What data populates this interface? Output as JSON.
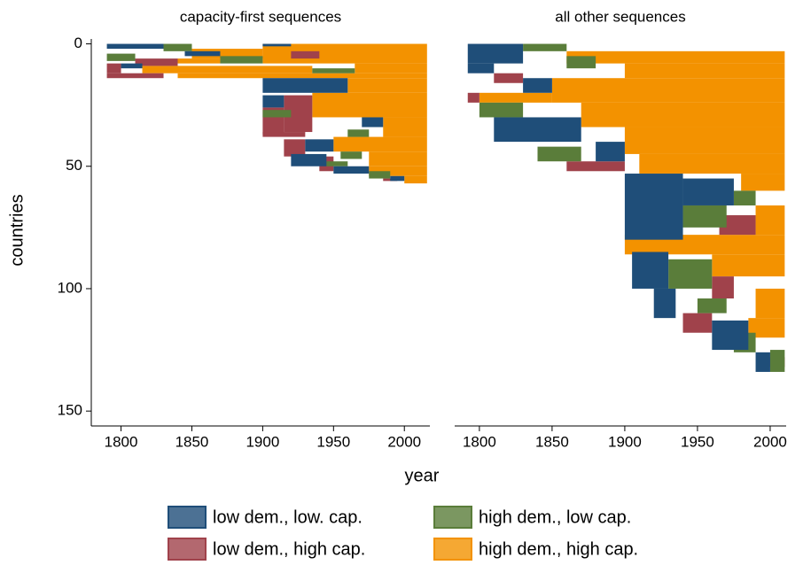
{
  "chart_data": [
    {
      "type": "sequence",
      "title": "capacity-first sequences",
      "xlim": [
        1779,
        2018
      ],
      "xticks": [
        1800,
        1850,
        1900,
        1950,
        2000
      ],
      "ylim": [
        -2,
        155
      ],
      "yticks": [
        0,
        50,
        100,
        150
      ],
      "segments": [
        [
          [
            0,
            2,
            1790,
            1830
          ],
          [
            0,
            1,
            1900,
            1920
          ],
          [
            3,
            5,
            1845,
            1870
          ],
          [
            14,
            20,
            1900,
            1960
          ],
          [
            21,
            26,
            1900,
            1915
          ],
          [
            39,
            44,
            1930,
            1950
          ],
          [
            45,
            50,
            1920,
            1945
          ],
          [
            50,
            53,
            1950,
            1975
          ],
          [
            54,
            56,
            1990,
            2000
          ],
          [
            8,
            10,
            1800,
            1815
          ],
          [
            30,
            34,
            1970,
            1985
          ]
        ],
        [
          [
            0,
            3,
            1830,
            1850
          ],
          [
            4,
            7,
            1790,
            1810
          ],
          [
            5,
            8,
            1870,
            1900
          ],
          [
            10,
            12,
            1935,
            1965
          ],
          [
            27,
            30,
            1900,
            1920
          ],
          [
            35,
            38,
            1960,
            1975
          ],
          [
            44,
            47,
            1955,
            1970
          ],
          [
            48,
            50,
            1945,
            1960
          ],
          [
            52,
            55,
            1975,
            1990
          ]
        ],
        [
          [
            8,
            12,
            1790,
            1800
          ],
          [
            6,
            9,
            1810,
            1840
          ],
          [
            12,
            14,
            1790,
            1830
          ],
          [
            21,
            36,
            1915,
            1935
          ],
          [
            26,
            37,
            1900,
            1915
          ],
          [
            36,
            38,
            1900,
            1930
          ],
          [
            39,
            46,
            1915,
            1930
          ],
          [
            46,
            52,
            1940,
            1950
          ],
          [
            55,
            56,
            1985,
            1995
          ],
          [
            3,
            6,
            1920,
            1940
          ]
        ],
        [
          [
            0,
            8,
            1900,
            2016
          ],
          [
            8,
            12,
            1965,
            2016
          ],
          [
            12,
            14,
            1840,
            2016
          ],
          [
            14,
            20,
            1960,
            2016
          ],
          [
            20,
            30,
            1935,
            2016
          ],
          [
            30,
            38,
            1985,
            2016
          ],
          [
            38,
            44,
            1950,
            2016
          ],
          [
            44,
            50,
            1975,
            2016
          ],
          [
            50,
            54,
            1975,
            2016
          ],
          [
            54,
            57,
            2000,
            2016
          ],
          [
            2,
            6,
            1850,
            1900
          ],
          [
            6,
            8,
            1840,
            1870
          ],
          [
            9,
            12,
            1815,
            1935
          ]
        ]
      ]
    },
    {
      "type": "sequence",
      "title": "all other sequences",
      "xlim": [
        1783,
        2011
      ],
      "xticks": [
        1800,
        1850,
        1900,
        1950,
        2000
      ],
      "ylim": [
        -2,
        155
      ],
      "segments": [
        [
          [
            0,
            8,
            1792,
            1830
          ],
          [
            8,
            12,
            1792,
            1810
          ],
          [
            30,
            40,
            1810,
            1870
          ],
          [
            53,
            80,
            1900,
            1940
          ],
          [
            55,
            66,
            1940,
            1975
          ],
          [
            85,
            100,
            1905,
            1930
          ],
          [
            100,
            112,
            1920,
            1935
          ],
          [
            113,
            125,
            1960,
            1985
          ],
          [
            126,
            134,
            1990,
            2000
          ],
          [
            40,
            48,
            1880,
            1900
          ],
          [
            14,
            20,
            1830,
            1850
          ]
        ],
        [
          [
            0,
            3,
            1830,
            1860
          ],
          [
            5,
            10,
            1860,
            1880
          ],
          [
            24,
            30,
            1800,
            1830
          ],
          [
            42,
            48,
            1840,
            1870
          ],
          [
            66,
            75,
            1940,
            1970
          ],
          [
            88,
            100,
            1930,
            1960
          ],
          [
            104,
            110,
            1950,
            1970
          ],
          [
            118,
            126,
            1975,
            1990
          ],
          [
            60,
            66,
            1975,
            1990
          ],
          [
            125,
            134,
            2000,
            2010
          ]
        ],
        [
          [
            12,
            16,
            1810,
            1830
          ],
          [
            20,
            24,
            1792,
            1800
          ],
          [
            48,
            52,
            1860,
            1900
          ],
          [
            70,
            78,
            1965,
            1990
          ],
          [
            95,
            104,
            1960,
            1975
          ],
          [
            110,
            118,
            1940,
            1960
          ],
          [
            128,
            132,
            1995,
            2010
          ]
        ],
        [
          [
            3,
            8,
            1860,
            2010
          ],
          [
            8,
            14,
            1900,
            2010
          ],
          [
            14,
            24,
            1850,
            2010
          ],
          [
            24,
            34,
            1870,
            2010
          ],
          [
            34,
            45,
            1900,
            2010
          ],
          [
            45,
            53,
            1910,
            2010
          ],
          [
            53,
            60,
            1980,
            2010
          ],
          [
            66,
            78,
            1990,
            2010
          ],
          [
            78,
            86,
            1900,
            2010
          ],
          [
            86,
            95,
            1960,
            2010
          ],
          [
            100,
            112,
            1990,
            2010
          ],
          [
            112,
            120,
            1985,
            2010
          ],
          [
            20,
            24,
            1800,
            1850
          ]
        ]
      ]
    }
  ],
  "xlabel": "year",
  "ylabel": "countries",
  "states": [
    {
      "name": "low dem., low. cap.",
      "color": "#1f4e79"
    },
    {
      "name": "high dem., low cap.",
      "color": "#5a7d3a"
    },
    {
      "name": "low dem., high cap.",
      "color": "#a0424b"
    },
    {
      "name": "high dem., high cap.",
      "color": "#f39200"
    }
  ]
}
